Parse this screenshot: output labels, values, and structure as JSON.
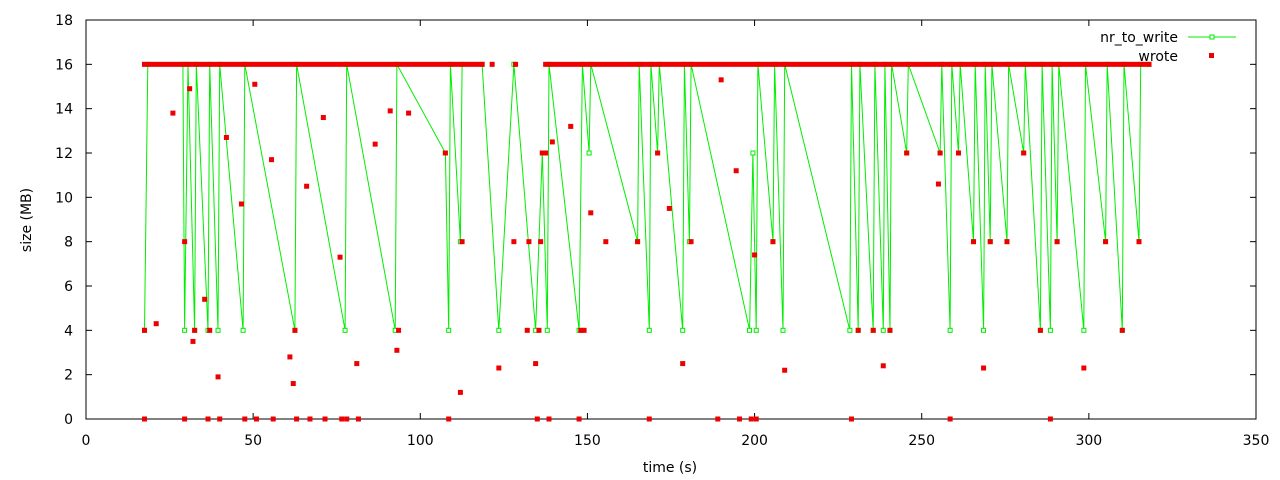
{
  "chart_data": {
    "type": "scatter",
    "xlabel": "time (s)",
    "ylabel": "size (MB)",
    "xlim": [
      0,
      350
    ],
    "ylim": [
      0,
      18
    ],
    "xticks": [
      0,
      50,
      100,
      150,
      200,
      250,
      300,
      350
    ],
    "yticks": [
      0,
      2,
      4,
      6,
      8,
      10,
      12,
      14,
      16,
      18
    ],
    "grid": false,
    "legend_position": "top-right",
    "series": [
      {
        "name": "nr_to_write",
        "style": "linespoints",
        "color": "#00ee00",
        "x": [
          17.5,
          18.5,
          29.0,
          29.5,
          30.5,
          32.5,
          33.0,
          36.5,
          37.0,
          39.5,
          40.0,
          47.0,
          47.5,
          62.5,
          63.0,
          77.5,
          78.0,
          92.5,
          93.0,
          107.5,
          108.5,
          109.0,
          112.0,
          112.5,
          118.5,
          123.5,
          128.0,
          134.5,
          136.5,
          138.0,
          138.5,
          147.5,
          148.5,
          150.5,
          151.0,
          165.0,
          165.5,
          168.5,
          169.0,
          171.0,
          171.5,
          178.5,
          179.0,
          180.5,
          181.0,
          198.5,
          199.5,
          200.5,
          201.0,
          205.5,
          206.0,
          208.5,
          209.0,
          228.5,
          229.0,
          231.0,
          231.5,
          235.5,
          236.0,
          238.5,
          239.0,
          240.5,
          241.0,
          245.5,
          246.0,
          255.5,
          256.0,
          258.5,
          259.0,
          261.0,
          261.5,
          265.5,
          266.0,
          268.5,
          269.0,
          270.5,
          271.0,
          275.5,
          276.0,
          280.5,
          281.0,
          285.5,
          286.0,
          288.5,
          289.0,
          290.5,
          291.0,
          298.5,
          299.0,
          305.0,
          305.5,
          310.0,
          310.5,
          315.0,
          315.5,
          318.0
        ],
        "y": [
          4,
          16,
          16,
          4,
          16,
          4,
          16,
          4,
          16,
          4,
          16,
          4,
          16,
          4,
          16,
          4,
          16,
          4,
          16,
          12,
          4,
          16,
          8,
          16,
          16,
          4,
          16,
          4,
          12,
          4,
          16,
          4,
          16,
          12,
          16,
          8,
          16,
          4,
          16,
          12,
          16,
          4,
          16,
          8,
          16,
          4,
          12,
          4,
          16,
          8,
          16,
          4,
          16,
          4,
          16,
          4,
          16,
          4,
          16,
          4,
          16,
          4,
          16,
          12,
          16,
          12,
          16,
          4,
          16,
          12,
          16,
          8,
          16,
          4,
          16,
          8,
          16,
          8,
          16,
          12,
          16,
          4,
          16,
          4,
          16,
          8,
          16,
          4,
          16,
          8,
          16,
          4,
          16,
          8,
          16,
          16
        ]
      },
      {
        "name": "wrote",
        "style": "points",
        "color": "#ee0000",
        "segments": [
          [
            17.5,
            118.5,
            16
          ],
          [
            137.5,
            318,
            16
          ]
        ],
        "x": [
          17.5,
          17.5,
          21,
          26,
          29.5,
          29.5,
          31,
          32,
          32.5,
          35.5,
          36.5,
          37,
          39.5,
          40,
          42,
          46.5,
          47.5,
          50.5,
          51,
          55.5,
          56,
          61,
          62,
          62.5,
          63,
          66,
          67,
          71,
          71.5,
          76,
          76.5,
          78,
          81,
          81.5,
          86.5,
          91,
          93,
          93.5,
          96.5,
          107.5,
          108.5,
          112,
          112.5,
          121.5,
          123.5,
          128,
          128.5,
          132,
          132.5,
          134.5,
          135,
          135.5,
          136,
          136.5,
          137.5,
          138.5,
          139.5,
          145,
          147.5,
          148,
          149,
          151,
          155.5,
          165,
          168.5,
          171,
          174.5,
          178.5,
          181,
          189,
          190,
          194.5,
          195.5,
          199,
          200,
          200.5,
          205.5,
          209,
          229,
          231,
          235.5,
          238.5,
          240.5,
          245.5,
          255,
          255.5,
          258.5,
          261,
          265.5,
          268.5,
          270.5,
          275.5,
          280.5,
          285.5,
          288.5,
          290.5,
          298.5,
          305,
          310,
          315
        ],
        "y": [
          4,
          0,
          4.3,
          13.8,
          8,
          0,
          14.9,
          3.5,
          4,
          5.4,
          0,
          4,
          1.9,
          0,
          12.7,
          9.7,
          0,
          15.1,
          0,
          11.7,
          0,
          2.8,
          1.6,
          4,
          0,
          10.5,
          0,
          13.6,
          0,
          7.3,
          0,
          0,
          2.5,
          0,
          12.4,
          13.9,
          3.1,
          4,
          13.8,
          12,
          0,
          1.2,
          8,
          16,
          2.3,
          8,
          16,
          4,
          8,
          2.5,
          0,
          4,
          8,
          12,
          12,
          0,
          12.5,
          13.2,
          0,
          4,
          4,
          9.3,
          8,
          8,
          0,
          12,
          9.5,
          2.5,
          8,
          0,
          15.3,
          11.2,
          0,
          0,
          7.4,
          0,
          8,
          2.2,
          0,
          4,
          4,
          2.4,
          4,
          12,
          10.6,
          12,
          0,
          12,
          8,
          2.3,
          8,
          8,
          12,
          4,
          0,
          8,
          2.3,
          8,
          4,
          8
        ]
      }
    ]
  }
}
